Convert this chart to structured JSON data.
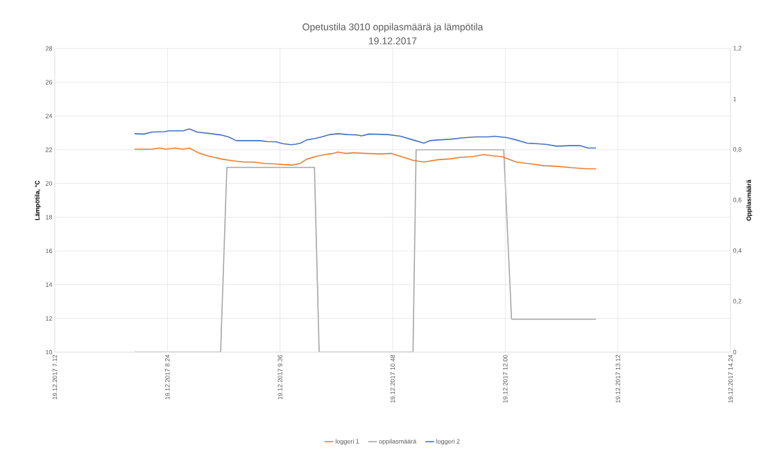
{
  "chart_data": {
    "type": "line",
    "title": "Opetustila 3010 oppilasmäärä ja lämpötila",
    "subtitle": "19.12.2017",
    "ylabel": "Lämpötila, °C",
    "y2label": "Oppilasmäärä",
    "xlim": [
      "2017-12-19T07:12",
      "2017-12-19T14:24"
    ],
    "xticks": [
      {
        "value": "2017-12-19T07:12",
        "label": "19.12.2017 7.12"
      },
      {
        "value": "2017-12-19T08:24",
        "label": "19.12.2017 8.24"
      },
      {
        "value": "2017-12-19T09:36",
        "label": "19.12.2017 9.36"
      },
      {
        "value": "2017-12-19T10:48",
        "label": "19.12.2017 10.48"
      },
      {
        "value": "2017-12-19T12:00",
        "label": "19.12.2017 12.00"
      },
      {
        "value": "2017-12-19T13:12",
        "label": "19.12.2017 13.12"
      },
      {
        "value": "2017-12-19T14:24",
        "label": "19.12.2017 14.24"
      }
    ],
    "ylim": [
      10,
      28
    ],
    "yticks": [
      10,
      12,
      14,
      16,
      18,
      20,
      22,
      24,
      26,
      28
    ],
    "y2lim": [
      0,
      1.2
    ],
    "y2ticks": [
      0,
      {
        "value": 0.2,
        "label": "0,2"
      },
      {
        "value": 0.4,
        "label": "0,4"
      },
      {
        "value": 0.6,
        "label": "0,6"
      },
      {
        "value": 0.8,
        "label": "0,8"
      },
      1,
      {
        "value": 1.2,
        "label": "1,2"
      }
    ],
    "grid": true,
    "legend": "bottom",
    "series": [
      {
        "name": "loggeri 1",
        "color": "#ed7d31",
        "x": [
          "2017-12-19T08:03",
          "2017-12-19T08:14",
          "2017-12-19T08:19",
          "2017-12-19T08:23",
          "2017-12-19T08:29",
          "2017-12-19T08:34",
          "2017-12-19T08:38",
          "2017-12-19T08:44",
          "2017-12-19T08:50",
          "2017-12-19T08:59",
          "2017-12-19T09:06",
          "2017-12-19T09:13",
          "2017-12-19T09:19",
          "2017-12-19T09:26",
          "2017-12-19T09:33",
          "2017-12-19T09:38",
          "2017-12-19T09:44",
          "2017-12-19T09:49",
          "2017-12-19T09:53",
          "2017-12-19T10:00",
          "2017-12-19T10:06",
          "2017-12-19T10:10",
          "2017-12-19T10:13",
          "2017-12-19T10:18",
          "2017-12-19T10:23",
          "2017-12-19T10:31",
          "2017-12-19T10:40",
          "2017-12-19T10:47",
          "2017-12-19T10:53",
          "2017-12-19T11:01",
          "2017-12-19T11:08",
          "2017-12-19T11:17",
          "2017-12-19T11:25",
          "2017-12-19T11:32",
          "2017-12-19T11:39",
          "2017-12-19T11:46",
          "2017-12-19T11:53",
          "2017-12-19T11:58",
          "2017-12-19T12:07",
          "2017-12-19T12:14",
          "2017-12-19T12:25",
          "2017-12-19T12:33",
          "2017-12-19T12:43",
          "2017-12-19T12:52",
          "2017-12-19T12:58"
        ],
        "values": [
          22.03,
          22.03,
          22.1,
          22.03,
          22.1,
          22.03,
          22.1,
          21.81,
          21.63,
          21.44,
          21.34,
          21.27,
          21.27,
          21.19,
          21.16,
          21.12,
          21.09,
          21.19,
          21.44,
          21.63,
          21.73,
          21.78,
          21.87,
          21.78,
          21.82,
          21.78,
          21.75,
          21.78,
          21.61,
          21.37,
          21.27,
          21.41,
          21.46,
          21.56,
          21.59,
          21.71,
          21.63,
          21.59,
          21.27,
          21.19,
          21.05,
          21.02,
          20.93,
          20.87,
          20.87
        ]
      },
      {
        "name": "oppilasmäärä",
        "color": "#a5a5a5",
        "axis": "y2",
        "x": [
          "2017-12-19T08:03",
          "2017-12-19T08:58",
          "2017-12-19T09:02",
          "2017-12-19T09:58",
          "2017-12-19T10:01",
          "2017-12-19T11:01",
          "2017-12-19T11:03",
          "2017-12-19T11:59",
          "2017-12-19T12:04",
          "2017-12-19T12:58"
        ],
        "values": [
          0,
          0,
          0.73,
          0.73,
          0,
          0,
          0.8,
          0.8,
          0.13,
          0.13
        ]
      },
      {
        "name": "loggeri 2",
        "color": "#4472c4",
        "x": [
          "2017-12-19T08:03",
          "2017-12-19T08:09",
          "2017-12-19T08:14",
          "2017-12-19T08:22",
          "2017-12-19T08:25",
          "2017-12-19T08:34",
          "2017-12-19T08:38",
          "2017-12-19T08:43",
          "2017-12-19T08:52",
          "2017-12-19T08:58",
          "2017-12-19T09:03",
          "2017-12-19T09:08",
          "2017-12-19T09:17",
          "2017-12-19T09:23",
          "2017-12-19T09:28",
          "2017-12-19T09:33",
          "2017-12-19T09:38",
          "2017-12-19T09:43",
          "2017-12-19T09:46",
          "2017-12-19T09:49",
          "2017-12-19T09:53",
          "2017-12-19T09:58",
          "2017-12-19T10:03",
          "2017-12-19T10:08",
          "2017-12-19T10:13",
          "2017-12-19T10:19",
          "2017-12-19T10:25",
          "2017-12-19T10:28",
          "2017-12-19T10:33",
          "2017-12-19T10:45",
          "2017-12-19T10:53",
          "2017-12-19T11:01",
          "2017-12-19T11:08",
          "2017-12-19T11:12",
          "2017-12-19T11:17",
          "2017-12-19T11:25",
          "2017-12-19T11:32",
          "2017-12-19T11:41",
          "2017-12-19T11:49",
          "2017-12-19T11:53",
          "2017-12-19T12:01",
          "2017-12-19T12:07",
          "2017-12-19T12:14",
          "2017-12-19T12:20",
          "2017-12-19T12:26",
          "2017-12-19T12:33",
          "2017-12-19T12:41",
          "2017-12-19T12:48",
          "2017-12-19T12:53",
          "2017-12-19T12:58"
        ],
        "values": [
          22.95,
          22.93,
          23.05,
          23.07,
          23.12,
          23.12,
          23.23,
          23.05,
          22.95,
          22.88,
          22.76,
          22.54,
          22.54,
          22.54,
          22.48,
          22.47,
          22.36,
          22.3,
          22.33,
          22.39,
          22.58,
          22.66,
          22.77,
          22.9,
          22.95,
          22.9,
          22.88,
          22.82,
          22.93,
          22.9,
          22.8,
          22.58,
          22.39,
          22.54,
          22.58,
          22.62,
          22.7,
          22.76,
          22.76,
          22.8,
          22.72,
          22.58,
          22.39,
          22.36,
          22.32,
          22.21,
          22.24,
          22.24,
          22.1,
          22.1
        ]
      }
    ]
  }
}
